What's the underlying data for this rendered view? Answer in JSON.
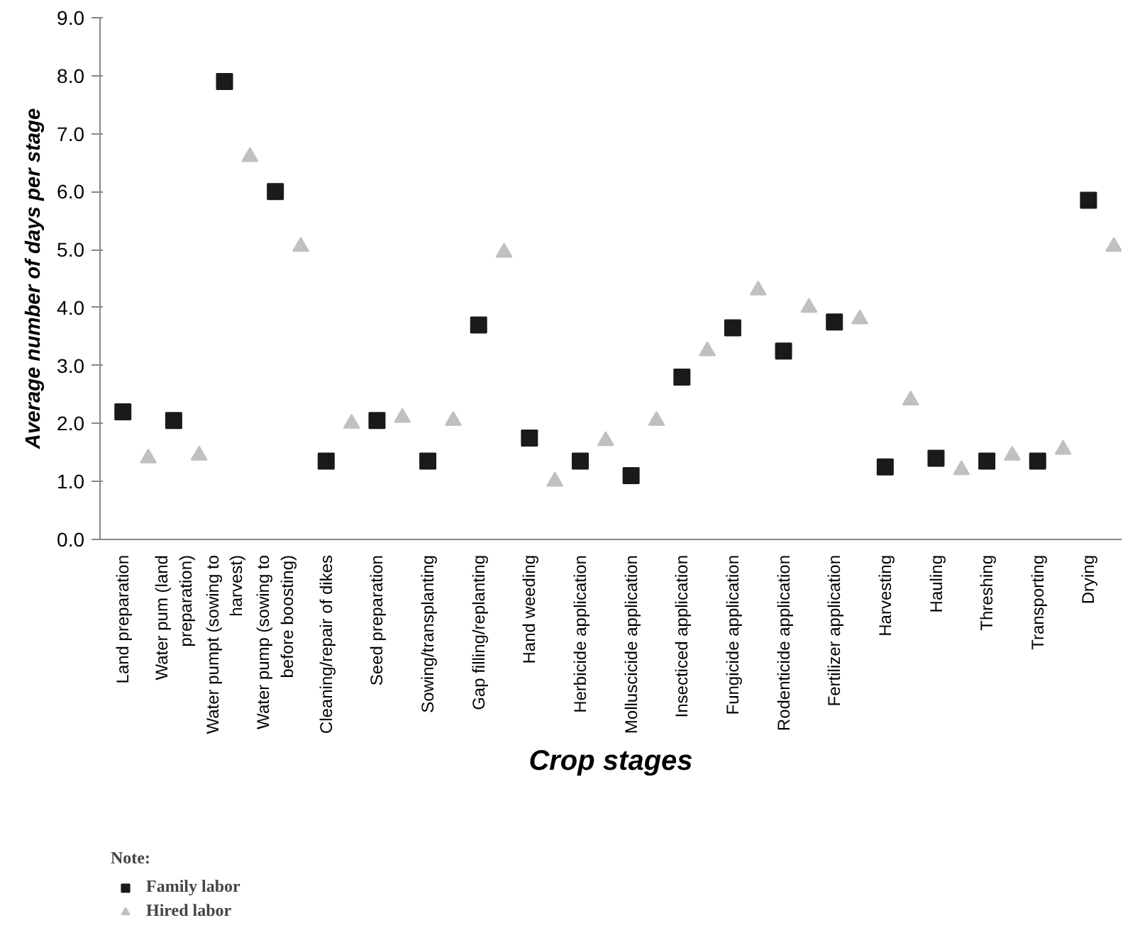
{
  "chart_data": {
    "type": "scatter",
    "xlabel": "Crop stages",
    "ylabel": "Average number of days per stage",
    "legend_title": "Note:",
    "categories": [
      "Land preparation",
      null,
      "Water pum (land preparation)",
      null,
      "Water pumpt (sowing to harvest)",
      null,
      "Water pump (sowing to before boosting)",
      null,
      "Cleaning/repair of dikes",
      null,
      "Seed preparation",
      null,
      "Sowing/transplanting",
      null,
      "Gap filling/replanting",
      null,
      "Hand weeding",
      null,
      "Herbicide application",
      null,
      "Molluscicide application",
      null,
      "Insecticed application",
      null,
      "Fungicide application",
      null,
      "Rodenticide application",
      null,
      "Fertilizer application",
      null,
      "Harvesting",
      null,
      "Hauling",
      null,
      "Threshing",
      null,
      "Transporting",
      null,
      "Drying",
      null
    ],
    "series": [
      {
        "name": "Family labor",
        "color": "#1a1a1a",
        "marker": "square",
        "values": [
          2.2,
          null,
          2.05,
          null,
          7.9,
          null,
          6.0,
          null,
          1.35,
          null,
          2.05,
          null,
          1.35,
          null,
          3.7,
          null,
          1.75,
          null,
          1.35,
          null,
          1.1,
          null,
          2.8,
          null,
          3.65,
          null,
          3.25,
          null,
          3.75,
          null,
          1.25,
          null,
          1.4,
          null,
          1.35,
          null,
          1.35,
          null,
          5.85,
          null
        ]
      },
      {
        "name": "Hired labor",
        "color": "#c0c0c0",
        "marker": "triangle",
        "values": [
          null,
          1.4,
          null,
          1.45,
          null,
          6.6,
          null,
          5.05,
          null,
          2.0,
          null,
          2.1,
          null,
          2.05,
          null,
          4.95,
          null,
          1.0,
          null,
          1.7,
          null,
          2.05,
          null,
          3.25,
          null,
          4.3,
          null,
          4.0,
          null,
          3.8,
          null,
          2.4,
          null,
          1.2,
          null,
          1.45,
          null,
          1.55,
          null,
          5.05
        ]
      }
    ],
    "ylim": [
      0,
      9
    ],
    "yticks": [
      {
        "value": 0,
        "label": "0.0"
      },
      {
        "value": 1,
        "label": "1.0"
      },
      {
        "value": 2,
        "label": "2.0"
      },
      {
        "value": 3,
        "label": "3.0"
      },
      {
        "value": 4,
        "label": "4.0"
      },
      {
        "value": 5,
        "label": "5.0"
      },
      {
        "value": 6,
        "label": "6.0"
      },
      {
        "value": 7,
        "label": "7.0"
      },
      {
        "value": 8,
        "label": "8.0"
      },
      {
        "value": 9,
        "label": "9.0"
      }
    ],
    "grid": false,
    "legend": "bottom left"
  }
}
